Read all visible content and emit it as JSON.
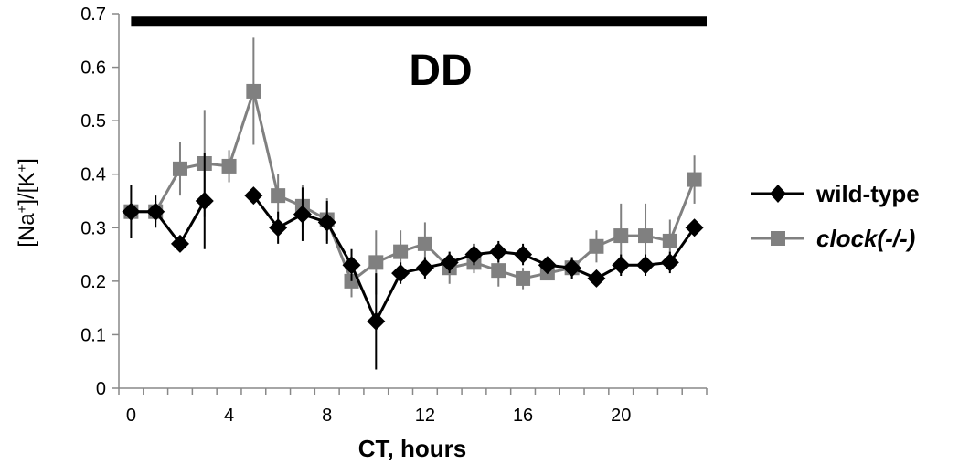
{
  "chart_data": {
    "type": "line",
    "title": "",
    "annotation": "DD",
    "xlabel": "CT, hours",
    "ylabel_parts": {
      "a": "[Na",
      "a_sup": "+",
      "b": "]/[K",
      "b_sup": "+",
      "c": "]"
    },
    "xlim": [
      -0.5,
      23.5
    ],
    "ylim": [
      0,
      0.7
    ],
    "x_ticks": [
      0,
      4,
      8,
      12,
      16,
      20
    ],
    "y_ticks": [
      0,
      0.1,
      0.2,
      0.3,
      0.4,
      0.5,
      0.6,
      0.7
    ],
    "y_tick_labels": [
      "0",
      "0.1",
      "0.2",
      "0.3",
      "0.4",
      "0.5",
      "0.6",
      "0.7"
    ],
    "x_tick_labels": [
      "0",
      "4",
      "8",
      "12",
      "16",
      "20"
    ],
    "dark_bar": {
      "from": 0,
      "to": 23.5,
      "y": 0.685
    },
    "legend": {
      "placement": "right"
    },
    "series": [
      {
        "name": "wild-type",
        "color": "#000000",
        "marker": "diamond",
        "segments": [
          {
            "x": [
              0,
              1,
              2,
              3
            ],
            "y": [
              0.33,
              0.33,
              0.27,
              0.35
            ],
            "err": [
              0.05,
              0.03,
              0.0,
              0.09
            ]
          },
          {
            "x": [
              5,
              6,
              7,
              8,
              9,
              10,
              11,
              12,
              13,
              14,
              15,
              16,
              17,
              18,
              19,
              20,
              21,
              22,
              23
            ],
            "y": [
              0.36,
              0.3,
              0.325,
              0.31,
              0.23,
              0.125,
              0.215,
              0.225,
              0.235,
              0.25,
              0.255,
              0.25,
              0.23,
              0.225,
              0.205,
              0.23,
              0.23,
              0.235,
              0.3
            ],
            "err": [
              0.0,
              0.03,
              0.05,
              0.04,
              0.03,
              0.09,
              0.02,
              0.02,
              0.02,
              0.02,
              0.02,
              0.02,
              0.01,
              0.02,
              0.01,
              0.02,
              0.02,
              0.02,
              0.01
            ]
          }
        ]
      },
      {
        "name": "clock(-/-)",
        "color": "#808080",
        "marker": "square",
        "segments": [
          {
            "x": [
              0,
              1,
              2,
              3,
              4,
              5,
              6,
              7,
              8,
              9,
              10,
              11,
              12,
              13,
              14,
              15,
              16,
              17,
              18,
              19,
              20,
              21,
              22,
              23
            ],
            "y": [
              0.33,
              0.33,
              0.41,
              0.42,
              0.415,
              0.555,
              0.36,
              0.34,
              0.315,
              0.2,
              0.235,
              0.255,
              0.27,
              0.225,
              0.235,
              0.22,
              0.205,
              0.215,
              0.225,
              0.265,
              0.285,
              0.285,
              0.275,
              0.39
            ],
            "err": [
              0.0,
              0.02,
              0.05,
              0.1,
              0.03,
              0.1,
              0.04,
              0.04,
              0.04,
              0.03,
              0.06,
              0.04,
              0.04,
              0.03,
              0.02,
              0.03,
              0.02,
              0.01,
              0.02,
              0.03,
              0.06,
              0.06,
              0.04,
              0.045
            ]
          }
        ]
      }
    ]
  }
}
